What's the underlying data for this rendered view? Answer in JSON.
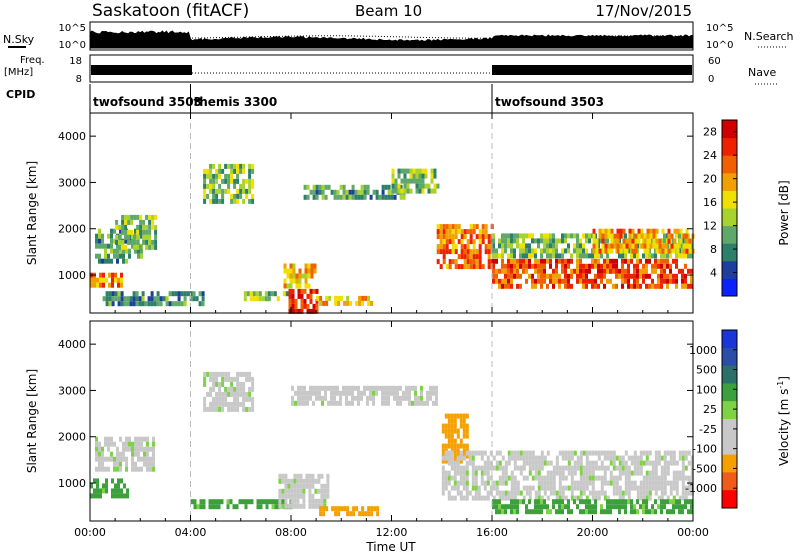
{
  "header": {
    "station": "Saskatoon (fitACF)",
    "beam": "Beam 10",
    "date": "17/Nov/2015"
  },
  "labels": {
    "nsky": "N.Sky",
    "freq_line1": "Freq.",
    "freq_line2": "[MHz]",
    "cpid": "CPID",
    "nsearch": "N.Search",
    "nave": "Nave",
    "nsky_ticks": [
      "10^5",
      "10^0"
    ],
    "nsearch_ticks": [
      "10^5",
      "10^0"
    ],
    "freq_ticks": [
      "18",
      "8"
    ],
    "nave_ticks": [
      "60",
      "0"
    ]
  },
  "cpid_segments": [
    {
      "label": "twofsound 3503",
      "start_h": 0,
      "end_h": 4
    },
    {
      "label": "themis 3300",
      "start_h": 4,
      "end_h": 16
    },
    {
      "label": "twofsound 3503",
      "start_h": 16,
      "end_h": 24
    }
  ],
  "colors": {
    "power": [
      "#0a22ff",
      "#1e3e9e",
      "#2e7f6a",
      "#5fa86a",
      "#a8d22c",
      "#f0e000",
      "#f0a000",
      "#f06000",
      "#ee2000",
      "#d00000"
    ],
    "velocity": [
      "#ff0000",
      "#f05a1a",
      "#f5a000",
      "#c8c8c8",
      "#c8c8c8",
      "#7ed246",
      "#3ca03c",
      "#2a6f6a",
      "#2a4da8",
      "#1a35d8"
    ],
    "dashed_line": "#bbbbbb"
  },
  "chart_data": [
    {
      "type": "heatmap",
      "title": "Power",
      "xlabel": "",
      "ylabel": "Slant Range [km]",
      "xlim": [
        0,
        24
      ],
      "ylim": [
        180,
        4500
      ],
      "x_ticks": [
        "00:00",
        "04:00",
        "08:00",
        "12:00",
        "16:00",
        "20:00",
        "00:00"
      ],
      "y_ticks": [
        1000,
        2000,
        3000,
        4000
      ],
      "colorbar": {
        "label": "Power [dB]",
        "ticks": [
          4,
          8,
          12,
          16,
          20,
          24,
          28
        ],
        "range": [
          0,
          30
        ]
      },
      "regions": [
        {
          "t0": 0.0,
          "t1": 1.2,
          "r0": 750,
          "r1": 1050,
          "value": 22
        },
        {
          "t0": 0.2,
          "t1": 2.0,
          "r0": 1300,
          "r1": 2000,
          "value": 10
        },
        {
          "t0": 1.0,
          "t1": 2.6,
          "r0": 1600,
          "r1": 2300,
          "value": 12
        },
        {
          "t0": 0.5,
          "t1": 4.5,
          "r0": 350,
          "r1": 650,
          "value": 8
        },
        {
          "t0": 4.5,
          "t1": 6.5,
          "r0": 2600,
          "r1": 3400,
          "value": 12
        },
        {
          "t0": 6.0,
          "t1": 8.0,
          "r0": 450,
          "r1": 650,
          "value": 12
        },
        {
          "t0": 7.7,
          "t1": 8.9,
          "r0": 750,
          "r1": 1250,
          "value": 18
        },
        {
          "t0": 7.9,
          "t1": 9.0,
          "r0": 250,
          "r1": 700,
          "value": 26
        },
        {
          "t0": 9.0,
          "t1": 11.2,
          "r0": 350,
          "r1": 550,
          "value": 18
        },
        {
          "t0": 8.5,
          "t1": 12.5,
          "r0": 2700,
          "r1": 2950,
          "value": 10
        },
        {
          "t0": 12.0,
          "t1": 13.8,
          "r0": 2850,
          "r1": 3300,
          "value": 12
        },
        {
          "t0": 13.8,
          "t1": 16.0,
          "r0": 1200,
          "r1": 2100,
          "value": 22
        },
        {
          "t0": 16.0,
          "t1": 24.0,
          "r0": 750,
          "r1": 1350,
          "value": 24
        },
        {
          "t0": 16.0,
          "t1": 24.0,
          "r0": 1400,
          "r1": 1900,
          "value": 12
        },
        {
          "t0": 20.0,
          "t1": 24.0,
          "r0": 1500,
          "r1": 2000,
          "value": 20
        }
      ]
    },
    {
      "type": "heatmap",
      "title": "Velocity",
      "xlabel": "Time UT",
      "ylabel": "Slant Range [km]",
      "xlim": [
        0,
        24
      ],
      "ylim": [
        180,
        4500
      ],
      "x_ticks": [
        "00:00",
        "04:00",
        "08:00",
        "12:00",
        "16:00",
        "20:00",
        "00:00"
      ],
      "y_ticks": [
        1000,
        2000,
        3000,
        4000
      ],
      "colorbar": {
        "label": "Velocity [m s^-1]",
        "ticks": [
          "1000",
          "500",
          "100",
          "25",
          "-25",
          "-100",
          "-500",
          "-1000"
        ]
      },
      "regions": [
        {
          "t0": 0.0,
          "t1": 1.5,
          "r0": 700,
          "r1": 1100,
          "value": 120
        },
        {
          "t0": 0.2,
          "t1": 2.5,
          "r0": 1300,
          "r1": 2000,
          "value": 0
        },
        {
          "t0": 4.5,
          "t1": 6.5,
          "r0": 2600,
          "r1": 3400,
          "value": 0
        },
        {
          "t0": 4.0,
          "t1": 8.0,
          "r0": 500,
          "r1": 650,
          "value": 120
        },
        {
          "t0": 7.5,
          "t1": 9.5,
          "r0": 500,
          "r1": 1200,
          "value": 0
        },
        {
          "t0": 9.0,
          "t1": 11.5,
          "r0": 300,
          "r1": 500,
          "value": -200
        },
        {
          "t0": 8.0,
          "t1": 13.8,
          "r0": 2700,
          "r1": 3100,
          "value": 0
        },
        {
          "t0": 14.0,
          "t1": 15.0,
          "r0": 1500,
          "r1": 2500,
          "value": -300
        },
        {
          "t0": 14.0,
          "t1": 24.0,
          "r0": 700,
          "r1": 1700,
          "value": 0
        },
        {
          "t0": 16.0,
          "t1": 24.0,
          "r0": 350,
          "r1": 650,
          "value": 120
        }
      ]
    }
  ]
}
